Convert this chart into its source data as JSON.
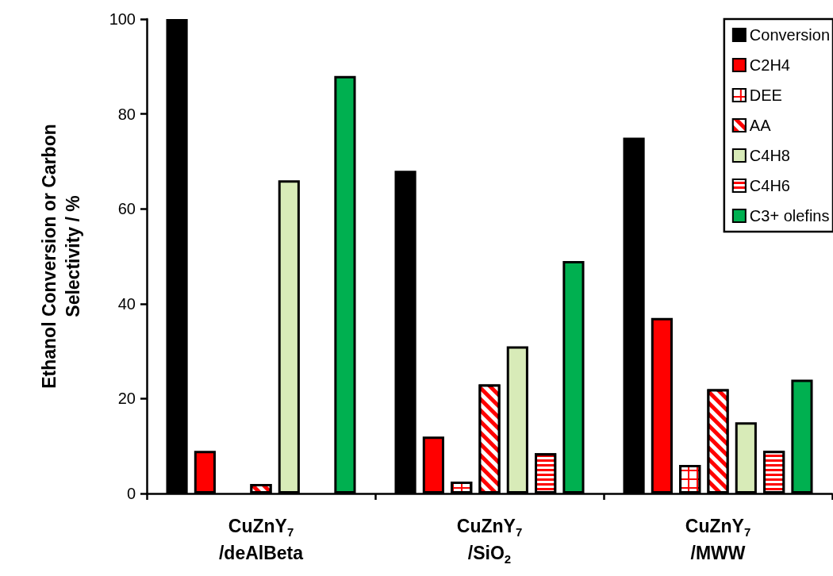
{
  "chart_data": {
    "type": "bar",
    "ylabel": "Ethanol Conversion or Carbon\nSelectivity / %",
    "categories": [
      "CuZnY$_{7}$\n/deAlBeta",
      "CuZnY$_{7}$\n/SiO$_{2}$",
      "CuZnY$_{7}$\n/MWW"
    ],
    "series": [
      {
        "name": "Conversion",
        "color": "#000000",
        "values": [
          100,
          68,
          75
        ]
      },
      {
        "name": "C2H4",
        "color": "#ff0000",
        "values": [
          9,
          12,
          37
        ]
      },
      {
        "name": "DEE",
        "color": "#ff0000",
        "values": [
          null,
          2.5,
          6
        ]
      },
      {
        "name": "AA",
        "color": "#ff0000",
        "values": [
          2,
          23,
          22
        ]
      },
      {
        "name": "C4H8",
        "color": "#d8ebb8",
        "values": [
          66,
          31,
          15
        ]
      },
      {
        "name": "C4H6",
        "color": "#ff0000",
        "values": [
          null,
          8.5,
          9
        ]
      },
      {
        "name": "C3+ olefins",
        "color": "#00b050",
        "values": [
          88,
          49,
          24
        ]
      }
    ],
    "ylim": [
      0,
      100
    ],
    "yticks": [
      0,
      20,
      40,
      60,
      80,
      100
    ],
    "grid": false,
    "legend": "top right"
  }
}
